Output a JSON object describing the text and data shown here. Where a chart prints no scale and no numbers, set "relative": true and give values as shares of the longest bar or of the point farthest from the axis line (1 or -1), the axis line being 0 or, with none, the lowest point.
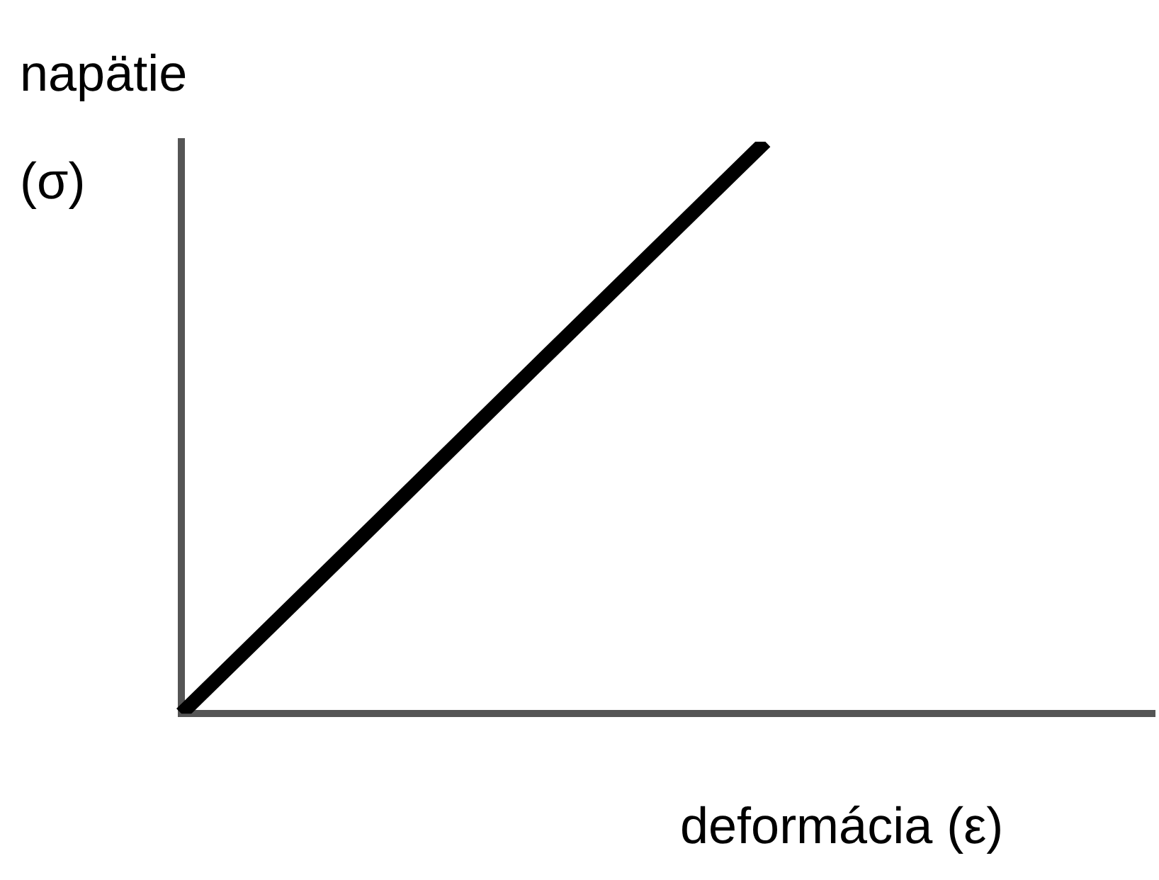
{
  "chart_data": {
    "type": "line",
    "relative": true,
    "xlabel": "deformácia (ε)",
    "ylabel": "napätie (σ)",
    "categories": [
      null,
      null,
      null,
      null,
      null,
      null
    ],
    "series": [
      {
        "color": "#000000",
        "values": [
          0,
          0.333,
          0.667,
          1,
          null,
          null
        ]
      }
    ],
    "grid": false,
    "legend": false
  }
}
